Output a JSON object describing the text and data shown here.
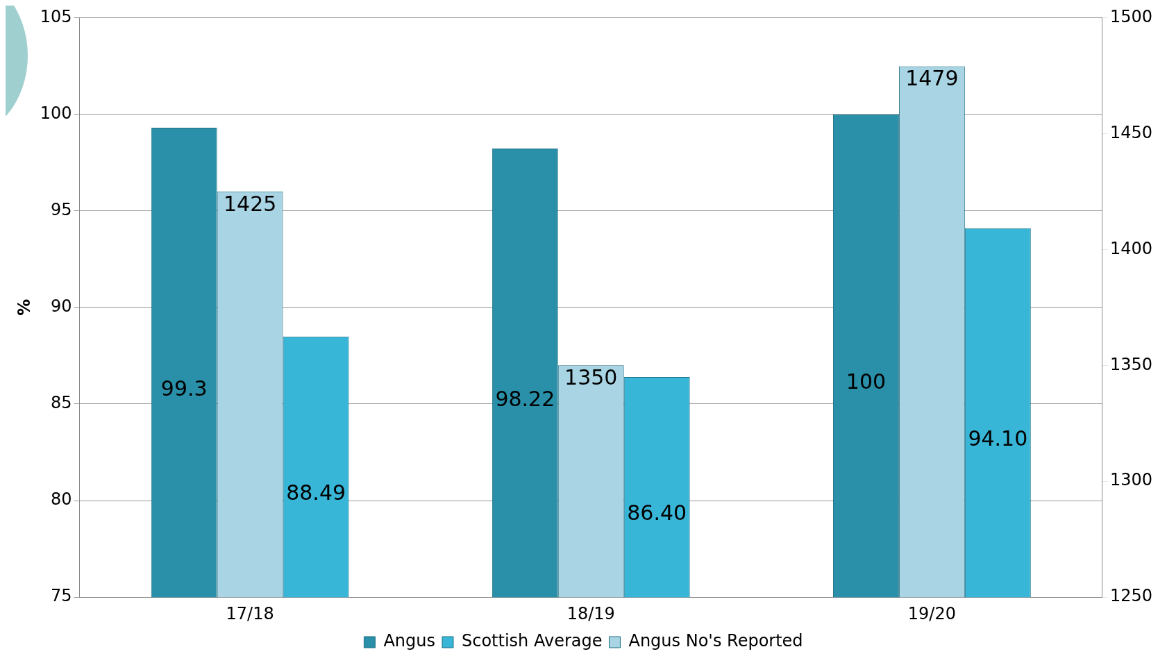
{
  "chart_data": {
    "type": "bar",
    "ylabel": "%",
    "categories": [
      "17/18",
      "18/19",
      "19/20"
    ],
    "series": [
      {
        "name": "Angus",
        "color": "#2a8fa8",
        "values": [
          99.3,
          98.22,
          100
        ],
        "value_labels": [
          "99.3",
          "98.22",
          "100"
        ]
      },
      {
        "name": "Angus No's Reported",
        "color": "#a8d4e4",
        "axis": "y2",
        "values": [
          1425,
          1350,
          1479
        ],
        "value_labels": [
          "1425",
          "1350",
          "1479"
        ]
      },
      {
        "name": "Scottish Average",
        "color": "#38b6d8",
        "values": [
          88.49,
          86.4,
          94.1
        ],
        "value_labels": [
          "88.49",
          "86.40",
          "94.10"
        ]
      }
    ],
    "ylim": [
      75,
      105
    ],
    "yticks": [
      75,
      80,
      85,
      90,
      95,
      100,
      105
    ],
    "y2lim": [
      1250,
      1500
    ],
    "y2ticks": [
      1250,
      1300,
      1350,
      1400,
      1450,
      1500
    ],
    "grid": "y",
    "legend": "bottom"
  }
}
